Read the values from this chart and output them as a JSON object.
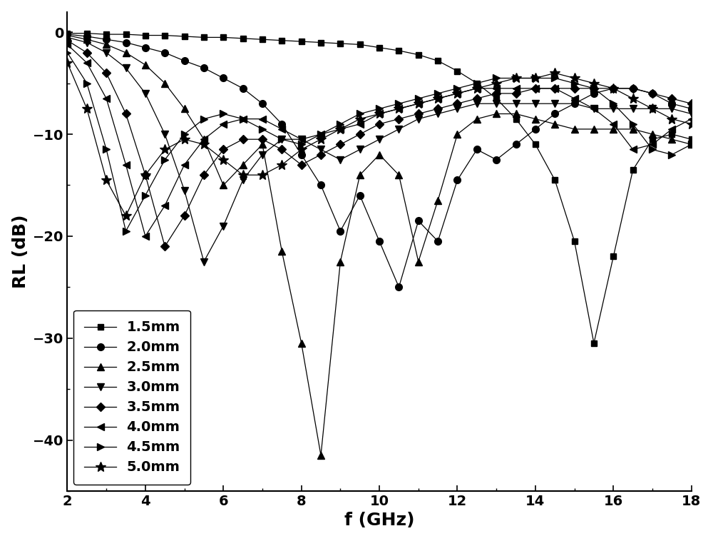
{
  "title": "",
  "xlabel": "f (GHz)",
  "ylabel": "RL (dB)",
  "xlim": [
    2,
    18
  ],
  "ylim": [
    -45,
    2
  ],
  "yticks": [
    0,
    -10,
    -20,
    -30,
    -40
  ],
  "xticks": [
    2,
    4,
    6,
    8,
    10,
    12,
    14,
    16,
    18
  ],
  "figsize": [
    10.0,
    7.58
  ],
  "dpi": 100,
  "series": [
    {
      "label": "1.5mm",
      "marker": "s",
      "freq": [
        2,
        2.5,
        3,
        3.5,
        4,
        4.5,
        5,
        5.5,
        6,
        6.5,
        7,
        7.5,
        8,
        8.5,
        9,
        9.5,
        10,
        10.5,
        11,
        11.5,
        12,
        12.5,
        13,
        13.5,
        14,
        14.5,
        15,
        15.5,
        16,
        16.5,
        17,
        17.5,
        18
      ],
      "rl": [
        -0.1,
        -0.1,
        -0.2,
        -0.2,
        -0.3,
        -0.3,
        -0.4,
        -0.5,
        -0.5,
        -0.6,
        -0.7,
        -0.8,
        -0.9,
        -1.0,
        -1.1,
        -1.2,
        -1.5,
        -1.8,
        -2.2,
        -2.8,
        -3.8,
        -5.0,
        -6.5,
        -8.5,
        -11.0,
        -14.5,
        -20.5,
        -30.5,
        -22.0,
        -13.5,
        -10.5,
        -10.0,
        -10.5
      ]
    },
    {
      "label": "2.0mm",
      "marker": "o",
      "freq": [
        2,
        2.5,
        3,
        3.5,
        4,
        4.5,
        5,
        5.5,
        6,
        6.5,
        7,
        7.5,
        8,
        8.5,
        9,
        9.5,
        10,
        10.5,
        11,
        11.5,
        12,
        12.5,
        13,
        13.5,
        14,
        14.5,
        15,
        15.5,
        16,
        16.5,
        17,
        17.5,
        18
      ],
      "rl": [
        -0.2,
        -0.4,
        -0.7,
        -1.0,
        -1.5,
        -2.0,
        -2.8,
        -3.5,
        -4.5,
        -5.5,
        -7.0,
        -9.0,
        -12.0,
        -15.0,
        -19.5,
        -16.0,
        -20.5,
        -25.0,
        -18.5,
        -20.5,
        -14.5,
        -11.5,
        -12.5,
        -11.0,
        -9.5,
        -8.0,
        -7.0,
        -6.0,
        -5.5,
        -5.5,
        -6.0,
        -7.0,
        -7.5
      ]
    },
    {
      "label": "2.5mm",
      "marker": "^",
      "freq": [
        2,
        2.5,
        3,
        3.5,
        4,
        4.5,
        5,
        5.5,
        6,
        6.5,
        7,
        7.5,
        8,
        8.5,
        9,
        9.5,
        10,
        10.5,
        11,
        11.5,
        12,
        12.5,
        13,
        13.5,
        14,
        14.5,
        15,
        15.5,
        16,
        16.5,
        17,
        17.5,
        18
      ],
      "rl": [
        -0.3,
        -0.7,
        -1.2,
        -2.0,
        -3.2,
        -5.0,
        -7.5,
        -10.5,
        -15.0,
        -13.0,
        -11.0,
        -21.5,
        -30.5,
        -41.5,
        -22.5,
        -14.0,
        -12.0,
        -14.0,
        -22.5,
        -16.5,
        -10.0,
        -8.5,
        -8.0,
        -8.0,
        -8.5,
        -9.0,
        -9.5,
        -9.5,
        -9.5,
        -9.5,
        -10.0,
        -10.5,
        -11.0
      ]
    },
    {
      "label": "3.0mm",
      "marker": "v",
      "freq": [
        2,
        2.5,
        3,
        3.5,
        4,
        4.5,
        5,
        5.5,
        6,
        6.5,
        7,
        7.5,
        8,
        8.5,
        9,
        9.5,
        10,
        10.5,
        11,
        11.5,
        12,
        12.5,
        13,
        13.5,
        14,
        14.5,
        15,
        15.5,
        16,
        16.5,
        17,
        17.5,
        18
      ],
      "rl": [
        -0.5,
        -1.0,
        -2.0,
        -3.5,
        -6.0,
        -10.0,
        -15.5,
        -22.5,
        -19.0,
        -14.5,
        -12.0,
        -10.5,
        -10.5,
        -11.5,
        -12.5,
        -11.5,
        -10.5,
        -9.5,
        -8.5,
        -8.0,
        -7.5,
        -7.0,
        -7.0,
        -7.0,
        -7.0,
        -7.0,
        -7.0,
        -7.5,
        -7.5,
        -7.5,
        -7.5,
        -7.5,
        -8.0
      ]
    },
    {
      "label": "3.5mm",
      "marker": "D",
      "freq": [
        2,
        2.5,
        3,
        3.5,
        4,
        4.5,
        5,
        5.5,
        6,
        6.5,
        7,
        7.5,
        8,
        8.5,
        9,
        9.5,
        10,
        10.5,
        11,
        11.5,
        12,
        12.5,
        13,
        13.5,
        14,
        14.5,
        15,
        15.5,
        16,
        16.5,
        17,
        17.5,
        18
      ],
      "rl": [
        -0.8,
        -2.0,
        -4.0,
        -8.0,
        -14.0,
        -21.0,
        -18.0,
        -14.0,
        -11.5,
        -10.5,
        -10.5,
        -11.5,
        -13.0,
        -12.0,
        -11.0,
        -10.0,
        -9.0,
        -8.5,
        -8.0,
        -7.5,
        -7.0,
        -6.5,
        -6.0,
        -6.0,
        -5.5,
        -5.5,
        -5.5,
        -5.5,
        -5.5,
        -5.5,
        -6.0,
        -6.5,
        -7.0
      ]
    },
    {
      "label": "4.0mm",
      "marker": "<",
      "freq": [
        2,
        2.5,
        3,
        3.5,
        4,
        4.5,
        5,
        5.5,
        6,
        6.5,
        7,
        7.5,
        8,
        8.5,
        9,
        9.5,
        10,
        10.5,
        11,
        11.5,
        12,
        12.5,
        13,
        13.5,
        14,
        14.5,
        15,
        15.5,
        16,
        16.5,
        17,
        17.5,
        18
      ],
      "rl": [
        -1.2,
        -3.0,
        -6.5,
        -13.0,
        -20.0,
        -17.0,
        -13.0,
        -10.5,
        -9.0,
        -8.5,
        -8.5,
        -9.5,
        -10.5,
        -10.0,
        -9.5,
        -9.0,
        -8.0,
        -7.5,
        -7.0,
        -6.5,
        -6.0,
        -5.5,
        -5.5,
        -5.5,
        -5.5,
        -5.5,
        -6.5,
        -7.5,
        -9.0,
        -11.5,
        -11.0,
        -9.5,
        -8.5
      ]
    },
    {
      "label": "4.5mm",
      "marker": ">",
      "freq": [
        2,
        2.5,
        3,
        3.5,
        4,
        4.5,
        5,
        5.5,
        6,
        6.5,
        7,
        7.5,
        8,
        8.5,
        9,
        9.5,
        10,
        10.5,
        11,
        11.5,
        12,
        12.5,
        13,
        13.5,
        14,
        14.5,
        15,
        15.5,
        16,
        16.5,
        17,
        17.5,
        18
      ],
      "rl": [
        -2.0,
        -5.0,
        -11.5,
        -19.5,
        -16.0,
        -12.5,
        -10.0,
        -8.5,
        -8.0,
        -8.5,
        -9.5,
        -10.5,
        -11.0,
        -10.0,
        -9.0,
        -8.0,
        -7.5,
        -7.0,
        -6.5,
        -6.0,
        -5.5,
        -5.0,
        -4.5,
        -4.5,
        -4.5,
        -4.5,
        -5.0,
        -5.5,
        -7.0,
        -9.0,
        -11.5,
        -12.0,
        -11.0
      ]
    },
    {
      "label": "5.0mm",
      "marker": "*",
      "freq": [
        2,
        2.5,
        3,
        3.5,
        4,
        4.5,
        5,
        5.5,
        6,
        6.5,
        7,
        7.5,
        8,
        8.5,
        9,
        9.5,
        10,
        10.5,
        11,
        11.5,
        12,
        12.5,
        13,
        13.5,
        14,
        14.5,
        15,
        15.5,
        16,
        16.5,
        17,
        17.5,
        18
      ],
      "rl": [
        -3.0,
        -7.5,
        -14.5,
        -18.0,
        -14.0,
        -11.5,
        -10.5,
        -11.0,
        -12.5,
        -14.0,
        -14.0,
        -13.0,
        -11.5,
        -10.5,
        -9.5,
        -8.5,
        -8.0,
        -7.5,
        -7.0,
        -6.5,
        -6.0,
        -5.5,
        -5.0,
        -4.5,
        -4.5,
        -4.0,
        -4.5,
        -5.0,
        -5.5,
        -6.5,
        -7.5,
        -8.5,
        -9.0
      ]
    }
  ]
}
